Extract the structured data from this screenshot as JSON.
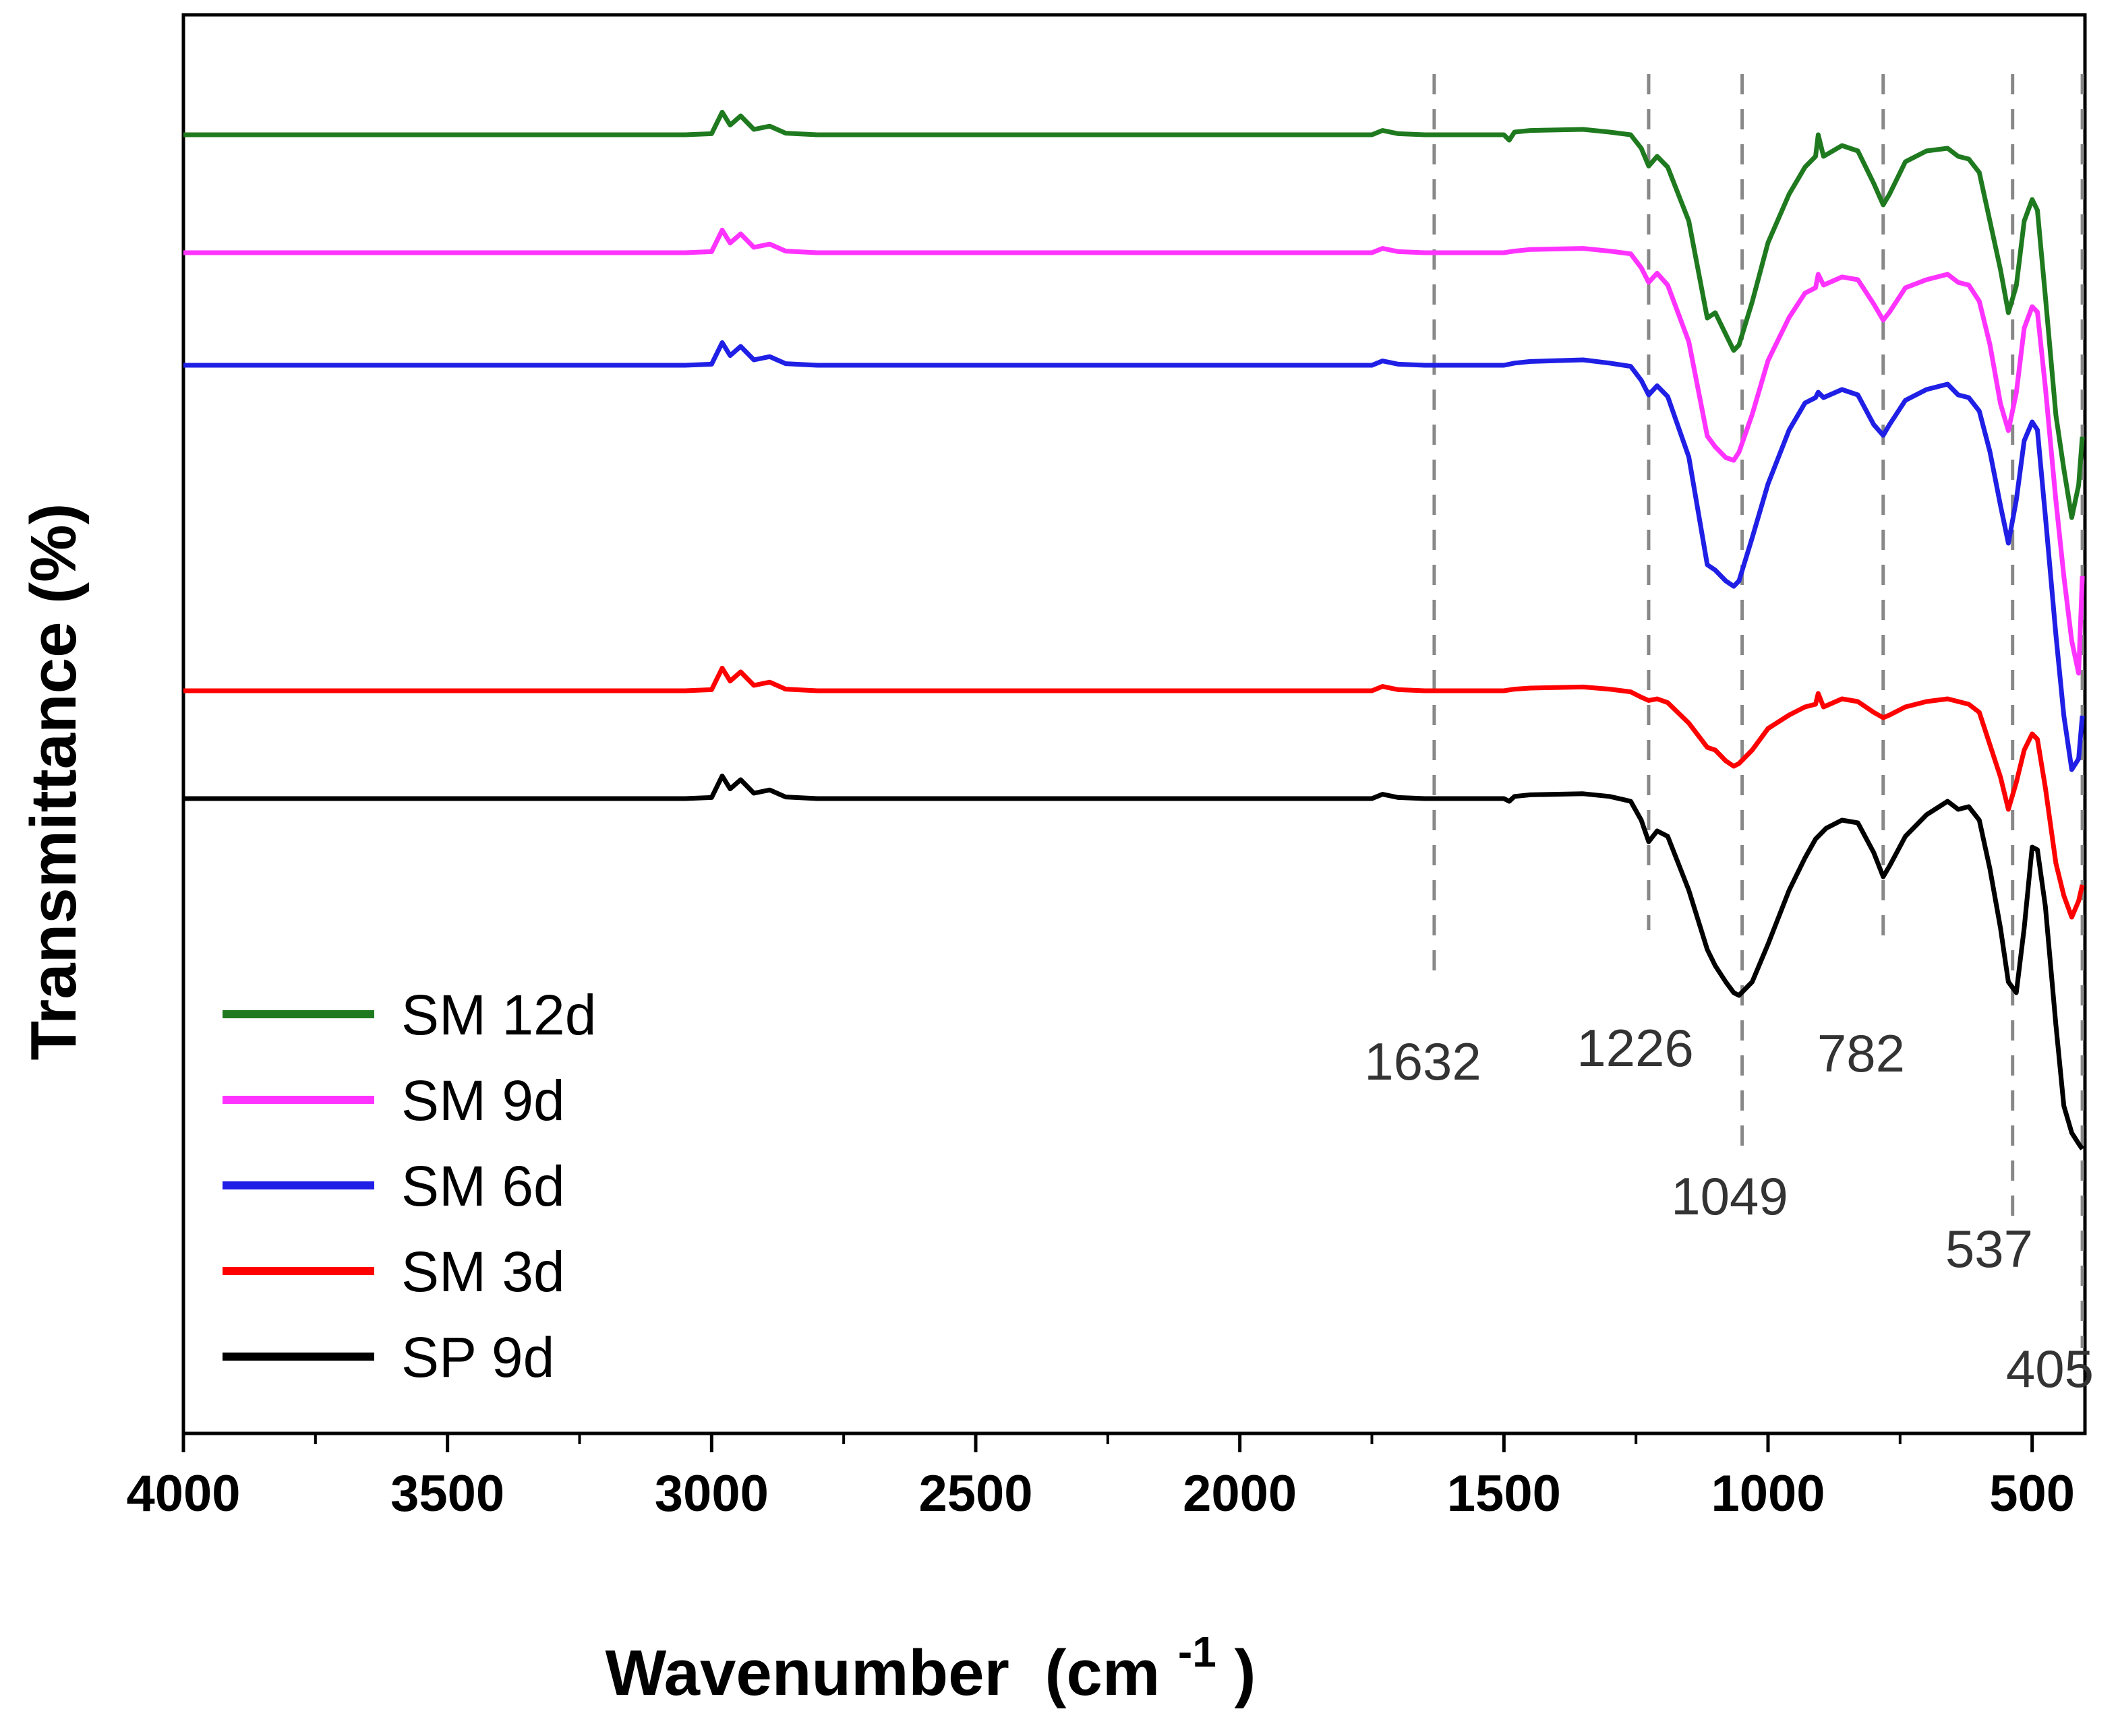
{
  "chart_data": {
    "type": "line",
    "title": "",
    "xlabel": "Wavenumber",
    "xlabel_unit": "(cm",
    "xlabel_exp": "-1",
    "xlabel_close": ")",
    "ylabel": "Transmittance (%)",
    "xlim": [
      4000,
      400
    ],
    "x_reversed": true,
    "y_ticks_shown": false,
    "x_ticks": [
      "4000",
      "3500",
      "3000",
      "2500",
      "2000",
      "1500",
      "1000",
      "500"
    ],
    "legend_position": "bottom-left",
    "reference_lines": [
      {
        "wavenumber": 1632,
        "label": "1632"
      },
      {
        "wavenumber": 1226,
        "label": "1226"
      },
      {
        "wavenumber": 1049,
        "label": "1049"
      },
      {
        "wavenumber": 782,
        "label": "782"
      },
      {
        "wavenumber": 537,
        "label": "537"
      },
      {
        "wavenumber": 405,
        "label": "405"
      }
    ],
    "series": [
      {
        "name": "SM 12d",
        "color": "#1f7a1f",
        "points": [
          [
            4000,
            1.0
          ],
          [
            3050,
            1.0
          ],
          [
            3000,
            1.02
          ],
          [
            2980,
            1.42
          ],
          [
            2965,
            1.18
          ],
          [
            2945,
            1.35
          ],
          [
            2920,
            1.1
          ],
          [
            2890,
            1.16
          ],
          [
            2860,
            1.03
          ],
          [
            2800,
            1.0
          ],
          [
            2200,
            1.0
          ],
          [
            1750,
            1.0
          ],
          [
            1730,
            1.08
          ],
          [
            1700,
            1.02
          ],
          [
            1650,
            1.0
          ],
          [
            1500,
            1.0
          ],
          [
            1490,
            0.9
          ],
          [
            1480,
            1.05
          ],
          [
            1450,
            1.08
          ],
          [
            1350,
            1.1
          ],
          [
            1300,
            1.05
          ],
          [
            1260,
            1.0
          ],
          [
            1240,
            0.75
          ],
          [
            1226,
            0.42
          ],
          [
            1210,
            0.6
          ],
          [
            1190,
            0.4
          ],
          [
            1150,
            -0.6
          ],
          [
            1115,
            -2.4
          ],
          [
            1100,
            -2.3
          ],
          [
            1080,
            -2.7
          ],
          [
            1065,
            -3.0
          ],
          [
            1055,
            -2.9
          ],
          [
            1030,
            -2.1
          ],
          [
            1000,
            -1.0
          ],
          [
            960,
            -0.1
          ],
          [
            930,
            0.4
          ],
          [
            910,
            0.6
          ],
          [
            905,
            1.0
          ],
          [
            895,
            0.6
          ],
          [
            860,
            0.8
          ],
          [
            830,
            0.7
          ],
          [
            800,
            0.1
          ],
          [
            782,
            -0.3
          ],
          [
            770,
            -0.1
          ],
          [
            740,
            0.5
          ],
          [
            700,
            0.7
          ],
          [
            660,
            0.75
          ],
          [
            640,
            0.6
          ],
          [
            620,
            0.55
          ],
          [
            600,
            0.3
          ],
          [
            580,
            -0.6
          ],
          [
            560,
            -1.5
          ],
          [
            545,
            -2.3
          ],
          [
            530,
            -1.8
          ],
          [
            515,
            -0.6
          ],
          [
            500,
            -0.2
          ],
          [
            490,
            -0.4
          ],
          [
            475,
            -2.0
          ],
          [
            455,
            -4.2
          ],
          [
            440,
            -5.2
          ],
          [
            425,
            -6.1
          ],
          [
            412,
            -5.5
          ],
          [
            405,
            -4.6
          ]
        ]
      },
      {
        "name": "SM 9d",
        "color": "#ff33ff",
        "points": [
          [
            4000,
            1.0
          ],
          [
            3050,
            1.0
          ],
          [
            3000,
            1.02
          ],
          [
            2980,
            1.42
          ],
          [
            2965,
            1.18
          ],
          [
            2945,
            1.35
          ],
          [
            2920,
            1.1
          ],
          [
            2890,
            1.16
          ],
          [
            2860,
            1.03
          ],
          [
            2800,
            1.0
          ],
          [
            2200,
            1.0
          ],
          [
            1750,
            1.0
          ],
          [
            1730,
            1.08
          ],
          [
            1700,
            1.02
          ],
          [
            1650,
            1.0
          ],
          [
            1500,
            1.0
          ],
          [
            1480,
            1.03
          ],
          [
            1450,
            1.06
          ],
          [
            1350,
            1.08
          ],
          [
            1300,
            1.03
          ],
          [
            1260,
            0.98
          ],
          [
            1240,
            0.72
          ],
          [
            1226,
            0.45
          ],
          [
            1210,
            0.62
          ],
          [
            1190,
            0.4
          ],
          [
            1150,
            -0.65
          ],
          [
            1115,
            -2.4
          ],
          [
            1100,
            -2.6
          ],
          [
            1080,
            -2.8
          ],
          [
            1065,
            -2.85
          ],
          [
            1055,
            -2.7
          ],
          [
            1030,
            -2.0
          ],
          [
            1000,
            -1.0
          ],
          [
            960,
            -0.2
          ],
          [
            930,
            0.25
          ],
          [
            910,
            0.35
          ],
          [
            905,
            0.6
          ],
          [
            895,
            0.4
          ],
          [
            860,
            0.55
          ],
          [
            830,
            0.5
          ],
          [
            800,
            0.05
          ],
          [
            782,
            -0.25
          ],
          [
            770,
            -0.1
          ],
          [
            740,
            0.35
          ],
          [
            700,
            0.5
          ],
          [
            660,
            0.6
          ],
          [
            640,
            0.45
          ],
          [
            620,
            0.4
          ],
          [
            600,
            0.1
          ],
          [
            580,
            -0.7
          ],
          [
            560,
            -1.8
          ],
          [
            545,
            -2.3
          ],
          [
            530,
            -1.6
          ],
          [
            515,
            -0.4
          ],
          [
            500,
            0.0
          ],
          [
            490,
            -0.1
          ],
          [
            475,
            -1.5
          ],
          [
            455,
            -3.6
          ],
          [
            440,
            -5.0
          ],
          [
            425,
            -6.2
          ],
          [
            412,
            -6.8
          ],
          [
            405,
            -5.0
          ]
        ]
      },
      {
        "name": "SM 6d",
        "color": "#1f1fe6",
        "points": [
          [
            4000,
            1.0
          ],
          [
            3050,
            1.0
          ],
          [
            3000,
            1.02
          ],
          [
            2980,
            1.42
          ],
          [
            2965,
            1.18
          ],
          [
            2945,
            1.35
          ],
          [
            2920,
            1.1
          ],
          [
            2890,
            1.16
          ],
          [
            2860,
            1.03
          ],
          [
            2800,
            1.0
          ],
          [
            2200,
            1.0
          ],
          [
            1750,
            1.0
          ],
          [
            1730,
            1.08
          ],
          [
            1700,
            1.02
          ],
          [
            1650,
            1.0
          ],
          [
            1500,
            1.0
          ],
          [
            1480,
            1.04
          ],
          [
            1450,
            1.07
          ],
          [
            1350,
            1.1
          ],
          [
            1300,
            1.04
          ],
          [
            1260,
            0.98
          ],
          [
            1240,
            0.72
          ],
          [
            1226,
            0.45
          ],
          [
            1210,
            0.62
          ],
          [
            1190,
            0.42
          ],
          [
            1150,
            -0.7
          ],
          [
            1115,
            -2.7
          ],
          [
            1100,
            -2.8
          ],
          [
            1080,
            -3.0
          ],
          [
            1065,
            -3.1
          ],
          [
            1055,
            -3.0
          ],
          [
            1030,
            -2.2
          ],
          [
            1000,
            -1.2
          ],
          [
            960,
            -0.2
          ],
          [
            930,
            0.3
          ],
          [
            910,
            0.4
          ],
          [
            905,
            0.5
          ],
          [
            895,
            0.4
          ],
          [
            860,
            0.55
          ],
          [
            830,
            0.45
          ],
          [
            800,
            -0.1
          ],
          [
            782,
            -0.3
          ],
          [
            770,
            -0.1
          ],
          [
            740,
            0.35
          ],
          [
            700,
            0.55
          ],
          [
            660,
            0.65
          ],
          [
            640,
            0.45
          ],
          [
            620,
            0.4
          ],
          [
            600,
            0.15
          ],
          [
            580,
            -0.6
          ],
          [
            560,
            -1.6
          ],
          [
            545,
            -2.3
          ],
          [
            530,
            -1.5
          ],
          [
            515,
            -0.4
          ],
          [
            500,
            -0.05
          ],
          [
            490,
            -0.2
          ],
          [
            475,
            -1.8
          ],
          [
            455,
            -4.0
          ],
          [
            440,
            -5.5
          ],
          [
            425,
            -6.5
          ],
          [
            412,
            -6.3
          ],
          [
            405,
            -5.5
          ]
        ]
      },
      {
        "name": "SM 3d",
        "color": "#ff0000",
        "points": [
          [
            4000,
            1.0
          ],
          [
            3050,
            1.0
          ],
          [
            3000,
            1.02
          ],
          [
            2980,
            1.42
          ],
          [
            2965,
            1.18
          ],
          [
            2945,
            1.35
          ],
          [
            2920,
            1.1
          ],
          [
            2890,
            1.16
          ],
          [
            2860,
            1.03
          ],
          [
            2800,
            1.0
          ],
          [
            2200,
            1.0
          ],
          [
            1750,
            1.0
          ],
          [
            1730,
            1.08
          ],
          [
            1700,
            1.02
          ],
          [
            1650,
            1.0
          ],
          [
            1500,
            1.0
          ],
          [
            1480,
            1.03
          ],
          [
            1450,
            1.05
          ],
          [
            1350,
            1.07
          ],
          [
            1300,
            1.03
          ],
          [
            1260,
            0.98
          ],
          [
            1240,
            0.88
          ],
          [
            1226,
            0.82
          ],
          [
            1210,
            0.85
          ],
          [
            1190,
            0.78
          ],
          [
            1150,
            0.4
          ],
          [
            1115,
            -0.05
          ],
          [
            1100,
            -0.1
          ],
          [
            1080,
            -0.3
          ],
          [
            1065,
            -0.4
          ],
          [
            1055,
            -0.35
          ],
          [
            1030,
            -0.1
          ],
          [
            1000,
            0.3
          ],
          [
            960,
            0.55
          ],
          [
            930,
            0.7
          ],
          [
            910,
            0.75
          ],
          [
            905,
            0.95
          ],
          [
            895,
            0.7
          ],
          [
            860,
            0.85
          ],
          [
            830,
            0.8
          ],
          [
            800,
            0.6
          ],
          [
            782,
            0.5
          ],
          [
            770,
            0.55
          ],
          [
            740,
            0.7
          ],
          [
            700,
            0.8
          ],
          [
            660,
            0.85
          ],
          [
            640,
            0.8
          ],
          [
            620,
            0.75
          ],
          [
            600,
            0.6
          ],
          [
            580,
            0.0
          ],
          [
            560,
            -0.6
          ],
          [
            545,
            -1.2
          ],
          [
            530,
            -0.7
          ],
          [
            515,
            -0.1
          ],
          [
            500,
            0.2
          ],
          [
            490,
            0.1
          ],
          [
            475,
            -0.8
          ],
          [
            455,
            -2.2
          ],
          [
            440,
            -2.8
          ],
          [
            425,
            -3.2
          ],
          [
            412,
            -2.9
          ],
          [
            405,
            -2.6
          ]
        ]
      },
      {
        "name": "SP 9d",
        "color": "#000000",
        "points": [
          [
            4000,
            1.0
          ],
          [
            3050,
            1.0
          ],
          [
            3000,
            1.02
          ],
          [
            2980,
            1.42
          ],
          [
            2965,
            1.18
          ],
          [
            2945,
            1.35
          ],
          [
            2920,
            1.1
          ],
          [
            2890,
            1.16
          ],
          [
            2860,
            1.03
          ],
          [
            2800,
            1.0
          ],
          [
            2200,
            1.0
          ],
          [
            1750,
            1.0
          ],
          [
            1730,
            1.08
          ],
          [
            1700,
            1.02
          ],
          [
            1650,
            1.0
          ],
          [
            1500,
            1.0
          ],
          [
            1490,
            0.95
          ],
          [
            1480,
            1.04
          ],
          [
            1450,
            1.07
          ],
          [
            1350,
            1.09
          ],
          [
            1300,
            1.04
          ],
          [
            1260,
            0.95
          ],
          [
            1240,
            0.6
          ],
          [
            1226,
            0.2
          ],
          [
            1210,
            0.4
          ],
          [
            1190,
            0.3
          ],
          [
            1150,
            -0.7
          ],
          [
            1115,
            -1.8
          ],
          [
            1100,
            -2.1
          ],
          [
            1080,
            -2.4
          ],
          [
            1065,
            -2.6
          ],
          [
            1055,
            -2.65
          ],
          [
            1030,
            -2.4
          ],
          [
            1000,
            -1.7
          ],
          [
            960,
            -0.7
          ],
          [
            930,
            -0.1
          ],
          [
            910,
            0.25
          ],
          [
            890,
            0.45
          ],
          [
            860,
            0.6
          ],
          [
            830,
            0.55
          ],
          [
            800,
            0.0
          ],
          [
            782,
            -0.45
          ],
          [
            770,
            -0.25
          ],
          [
            740,
            0.3
          ],
          [
            700,
            0.7
          ],
          [
            660,
            0.95
          ],
          [
            640,
            0.8
          ],
          [
            620,
            0.85
          ],
          [
            600,
            0.6
          ],
          [
            580,
            -0.3
          ],
          [
            560,
            -1.4
          ],
          [
            545,
            -2.4
          ],
          [
            530,
            -2.6
          ],
          [
            515,
            -1.4
          ],
          [
            500,
            0.1
          ],
          [
            490,
            0.05
          ],
          [
            475,
            -1.0
          ],
          [
            455,
            -3.2
          ],
          [
            440,
            -4.7
          ],
          [
            425,
            -5.2
          ],
          [
            412,
            -5.4
          ],
          [
            405,
            -5.5
          ]
        ]
      }
    ]
  }
}
